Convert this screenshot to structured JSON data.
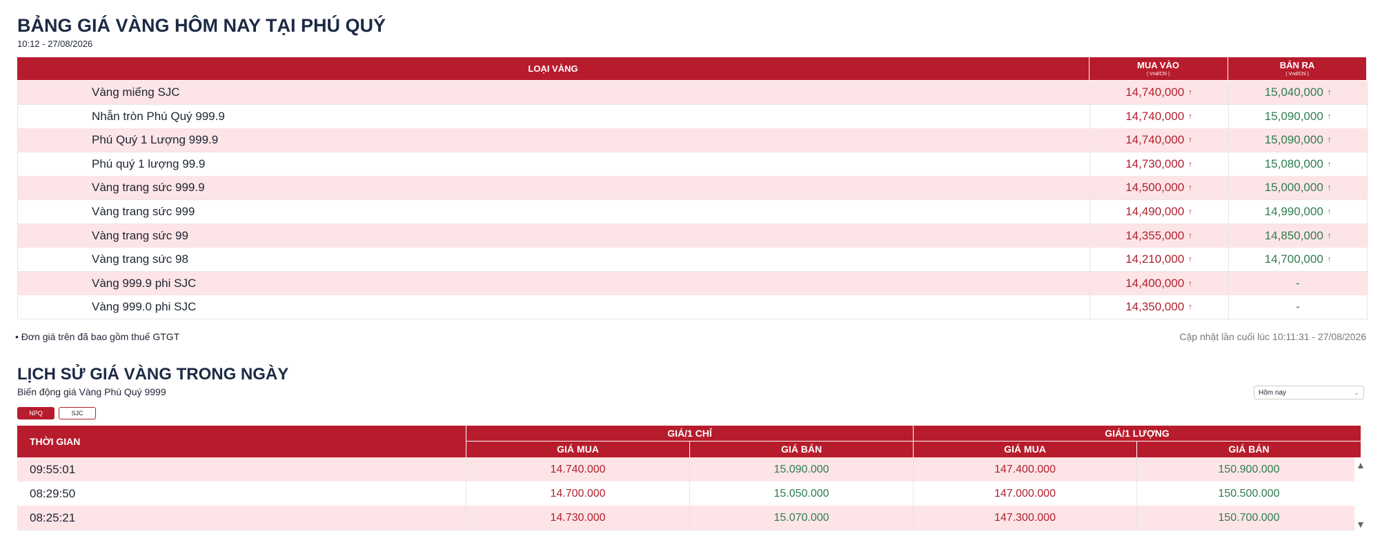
{
  "header": {
    "title": "BẢNG GIÁ VÀNG HÔM NAY TẠI PHÚ QUÝ",
    "timestamp": "10:12 - 27/08/2026"
  },
  "price_table": {
    "columns": [
      "LOẠI VÀNG",
      "MUA VÀO",
      "BÁN RA"
    ],
    "units": [
      "( Vnd/Chỉ )",
      "( Vnd/Chỉ )"
    ],
    "rows": [
      [
        "Vàng miếng SJC",
        "14,740,000",
        "15,040,000"
      ],
      [
        "Nhẫn tròn Phú Quý 999.9",
        "14,740,000",
        "15,090,000"
      ],
      [
        "Phú Quý 1 Lượng 999.9",
        "14,740,000",
        "15,090,000"
      ],
      [
        "Phú quý 1 lượng 99.9",
        "14,730,000",
        "15,080,000"
      ],
      [
        "Vàng trang sức 999.9",
        "14,500,000",
        "15,000,000"
      ],
      [
        "Vàng trang sức 999",
        "14,490,000",
        "14,990,000"
      ],
      [
        "Vàng trang sức 99",
        "14,355,000",
        "14,850,000"
      ],
      [
        "Vàng trang sức 98",
        "14,210,000",
        "14,700,000"
      ],
      [
        "Vàng 999.9 phi SJC",
        "14,400,000",
        "-"
      ],
      [
        "Vàng 999.0 phi SJC",
        "14,350,000",
        "-"
      ]
    ]
  },
  "note": "Đơn giá trên đã bao gồm thuế GTGT",
  "updated": "Cập nhật lần cuối lúc 10:11:31 - 27/08/2026",
  "history": {
    "title": "LỊCH SỬ GIÁ VÀNG TRONG NGÀY",
    "subtitle": "Biến động giá Vàng Phú Quý 9999",
    "select": "Hôm nay",
    "tabs": [
      "NPQ",
      "SJC"
    ],
    "time_header": "THỜI GIAN",
    "group_headers": [
      "GIÁ/1 CHỈ",
      "GIÁ/1 LƯỢNG"
    ],
    "sub_headers": [
      "GIÁ MUA",
      "GIÁ BÁN",
      "GIÁ MUA",
      "GIÁ BÁN"
    ],
    "rows": [
      [
        "09:55:01",
        "14.740.000",
        "15.090.000",
        "147.400.000",
        "150.900.000"
      ],
      [
        "08:29:50",
        "14.700.000",
        "15.050.000",
        "147.000.000",
        "150.500.000"
      ],
      [
        "08:25:21",
        "14.730.000",
        "15.070.000",
        "147.300.000",
        "150.700.000"
      ]
    ]
  }
}
